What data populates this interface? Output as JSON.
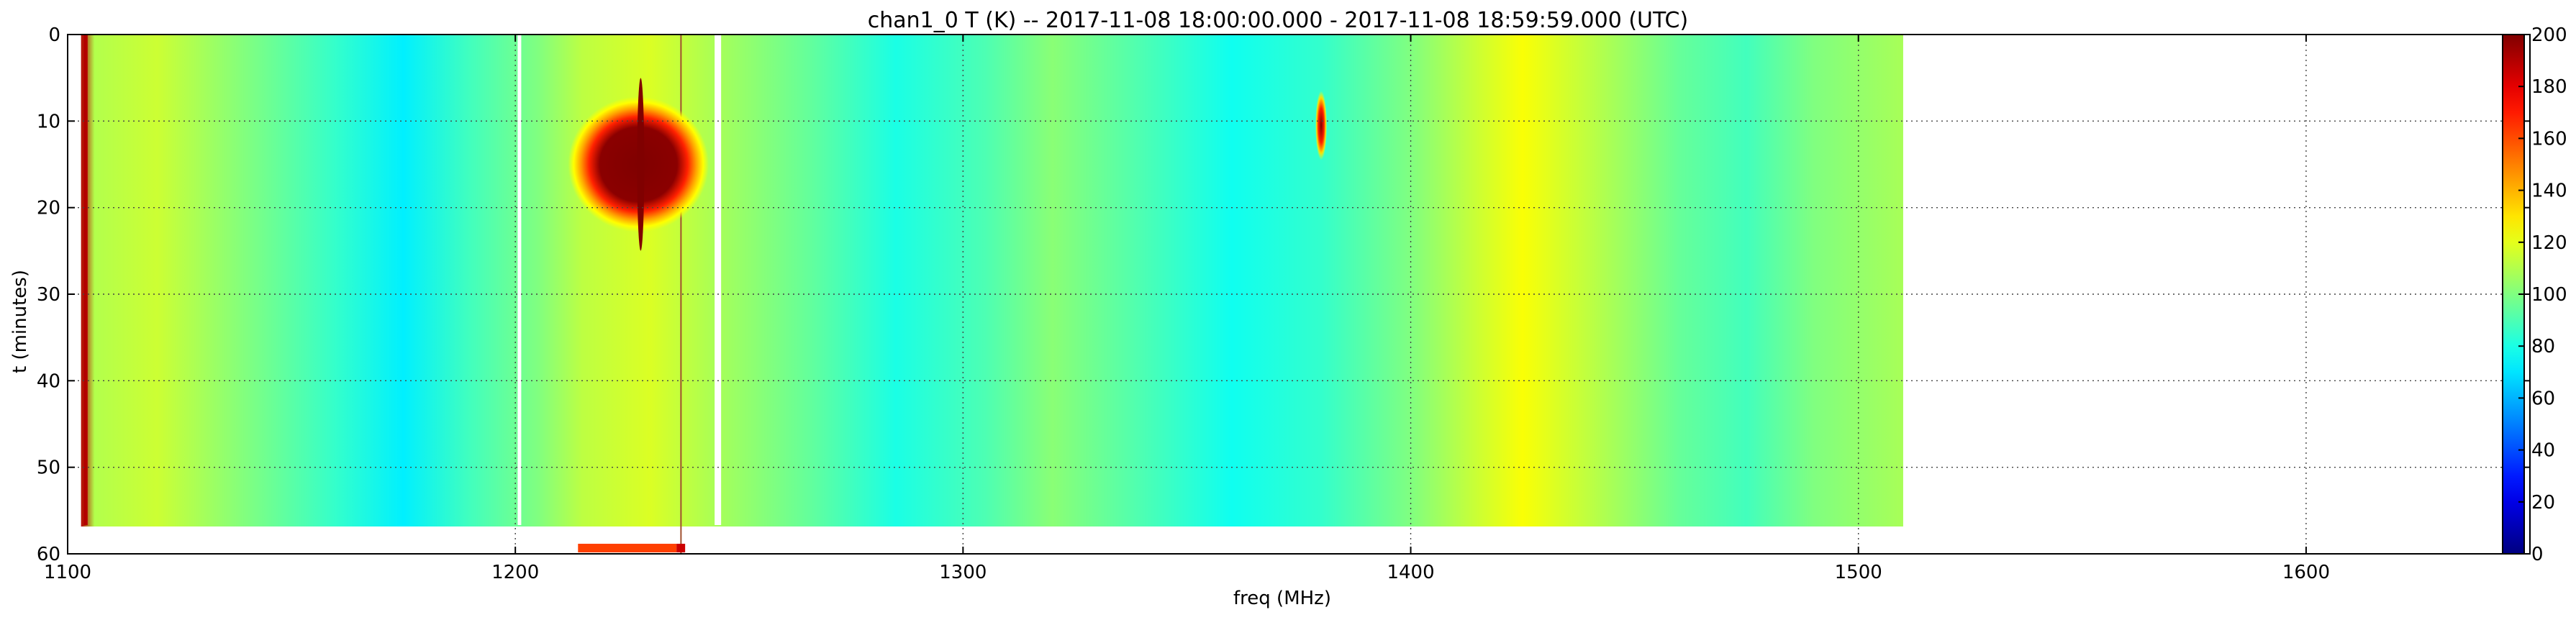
{
  "chart_data": {
    "type": "heatmap",
    "title": "chan1_0 T (K) -- 2017-11-08 18:00:00.000 - 2017-11-08 18:59:59.000 (UTC)",
    "xlabel": "freq (MHz)",
    "ylabel": "t (minutes)",
    "xlim": [
      1100,
      1650
    ],
    "ylim": [
      60,
      0
    ],
    "x_ticks": [
      "1100",
      "1200",
      "1300",
      "1400",
      "1500",
      "1600"
    ],
    "y_ticks": [
      "0",
      "10",
      "20",
      "30",
      "40",
      "50",
      "60"
    ],
    "colorbar": {
      "colormap": "jet",
      "range": [
        0,
        200
      ],
      "ticks": [
        "0",
        "20",
        "40",
        "60",
        "80",
        "100",
        "120",
        "140",
        "160",
        "180",
        "200"
      ]
    },
    "grid": true,
    "data_extent_freq_mhz": [
      1103,
      1510
    ],
    "temperature_profile": [
      {
        "freq": 1103,
        "T": 190
      },
      {
        "freq": 1106,
        "T": 110
      },
      {
        "freq": 1120,
        "T": 115
      },
      {
        "freq": 1140,
        "T": 100
      },
      {
        "freq": 1160,
        "T": 85
      },
      {
        "freq": 1175,
        "T": 72
      },
      {
        "freq": 1190,
        "T": 88
      },
      {
        "freq": 1205,
        "T": 100
      },
      {
        "freq": 1215,
        "T": 112
      },
      {
        "freq": 1230,
        "T": 118
      },
      {
        "freq": 1245,
        "T": 108
      },
      {
        "freq": 1265,
        "T": 95
      },
      {
        "freq": 1285,
        "T": 80
      },
      {
        "freq": 1305,
        "T": 90
      },
      {
        "freq": 1320,
        "T": 102
      },
      {
        "freq": 1340,
        "T": 90
      },
      {
        "freq": 1360,
        "T": 78
      },
      {
        "freq": 1380,
        "T": 85
      },
      {
        "freq": 1400,
        "T": 100
      },
      {
        "freq": 1415,
        "T": 115
      },
      {
        "freq": 1425,
        "T": 124
      },
      {
        "freq": 1440,
        "T": 112
      },
      {
        "freq": 1460,
        "T": 95
      },
      {
        "freq": 1475,
        "T": 88
      },
      {
        "freq": 1490,
        "T": 100
      },
      {
        "freq": 1510,
        "T": 108
      }
    ],
    "rfi_features": [
      {
        "freq_range": [
          1215,
          1240
        ],
        "t_range": [
          8,
          22
        ],
        "peak_T": 200
      },
      {
        "freq": 1380,
        "t_range": [
          7,
          14
        ],
        "peak_T": 200
      }
    ]
  }
}
